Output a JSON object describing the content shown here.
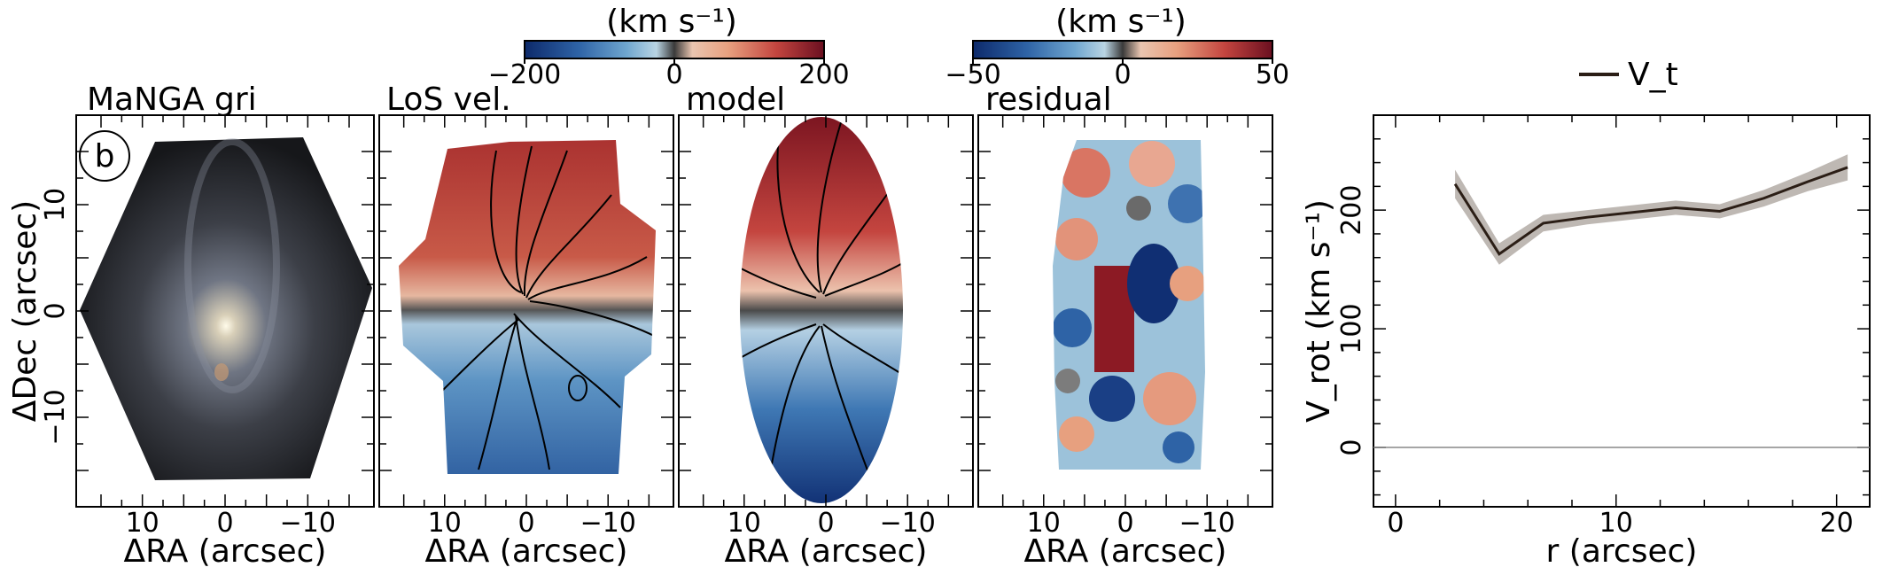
{
  "figure": {
    "panel_letter": "b",
    "panels": [
      {
        "id": "gri",
        "title": "MaNGA gri"
      },
      {
        "id": "vel",
        "title": "LoS vel."
      },
      {
        "id": "model",
        "title": "model"
      },
      {
        "id": "residual",
        "title": "residual"
      }
    ],
    "map_xlabel": "ΔRA (arcsec)",
    "map_ylabel": "ΔDec (arcsec)",
    "map_xticks": [
      "10",
      "0",
      "−10"
    ],
    "map_yticks": [
      "10",
      "0",
      "−10"
    ],
    "colorbars": [
      {
        "label": "(km s⁻¹)",
        "ticks": [
          "−200",
          "0",
          "200"
        ],
        "range": [
          -200,
          200
        ]
      },
      {
        "label": "(km s⁻¹)",
        "ticks": [
          "−50",
          "0",
          "50"
        ],
        "range": [
          -50,
          50
        ]
      }
    ],
    "colors": {
      "cmap_low": "#0d2a6b",
      "cmap_mid_low": "#6fa6cf",
      "cmap_center": "#3a3a3a",
      "cmap_mid_high": "#e7a07f",
      "cmap_high": "#6a0f20",
      "curve": "#2b1e16",
      "band": "#b3aca6"
    }
  },
  "chart_data": [
    {
      "type": "heatmap",
      "panel": "gri",
      "title": "MaNGA gri",
      "xlabel": "ΔRA (arcsec)",
      "ylabel": "ΔDec (arcsec)",
      "xlim": [
        18,
        -18
      ],
      "ylim": [
        -18,
        18
      ]
    },
    {
      "type": "heatmap",
      "panel": "vel",
      "title": "LoS vel.",
      "xlabel": "ΔRA (arcsec)",
      "colorbar_range": [
        -200,
        200
      ],
      "xlim": [
        18,
        -18
      ],
      "ylim": [
        -18,
        18
      ]
    },
    {
      "type": "heatmap",
      "panel": "model",
      "title": "model",
      "xlabel": "ΔRA (arcsec)",
      "colorbar_range": [
        -200,
        200
      ],
      "xlim": [
        18,
        -18
      ],
      "ylim": [
        -18,
        18
      ]
    },
    {
      "type": "heatmap",
      "panel": "residual",
      "title": "residual",
      "xlabel": "ΔRA (arcsec)",
      "colorbar_range": [
        -50,
        50
      ],
      "xlim": [
        18,
        -18
      ],
      "ylim": [
        -18,
        18
      ]
    },
    {
      "type": "line",
      "xlabel": "r (arcsec)",
      "ylabel": "V_rot (km s⁻¹)",
      "xlim": [
        -1,
        21.5
      ],
      "ylim": [
        -50,
        280
      ],
      "xticks": [
        "0",
        "10",
        "20"
      ],
      "yticks": [
        "0",
        "100",
        "200"
      ],
      "legend": {
        "entries": [
          "V_t"
        ],
        "placement": "top-center-outside"
      },
      "hline": 0,
      "series": [
        {
          "name": "V_t",
          "x": [
            2.7,
            4.7,
            6.7,
            8.7,
            10.7,
            12.7,
            14.7,
            16.7,
            18.7,
            20.5
          ],
          "y": [
            222,
            163,
            189,
            194,
            198,
            202,
            199,
            210,
            224,
            236
          ],
          "band_halfwidth": [
            12,
            9,
            7,
            6,
            6,
            6,
            6,
            7,
            8,
            11
          ]
        }
      ]
    }
  ]
}
